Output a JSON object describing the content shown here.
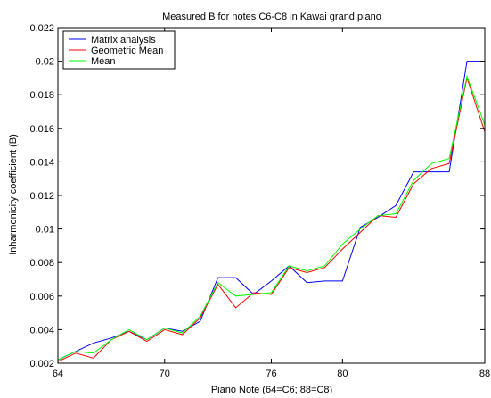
{
  "chart_data": {
    "type": "line",
    "title": "Measured B for notes C6-C8 in Kawai grand piano",
    "xlabel": "Piano Note (64=C6; 88=C8)",
    "ylabel": "Inharmonicity coefficient (B)",
    "xlim": [
      64,
      88
    ],
    "ylim": [
      0.002,
      0.022
    ],
    "x_ticks": [
      {
        "value": 64,
        "label": "64"
      },
      {
        "value": 70,
        "label": "70"
      },
      {
        "value": 76,
        "label": "76"
      },
      {
        "value": 80,
        "label": "80"
      },
      {
        "value": 88,
        "label": "88"
      }
    ],
    "y_ticks": [
      {
        "value": 0.002,
        "label": "0.002"
      },
      {
        "value": 0.004,
        "label": "0.004"
      },
      {
        "value": 0.006,
        "label": "0.006"
      },
      {
        "value": 0.008,
        "label": "0.008"
      },
      {
        "value": 0.01,
        "label": "0.01"
      },
      {
        "value": 0.012,
        "label": "0.012"
      },
      {
        "value": 0.014,
        "label": "0.014"
      },
      {
        "value": 0.016,
        "label": "0.016"
      },
      {
        "value": 0.018,
        "label": "0.018"
      },
      {
        "value": 0.02,
        "label": "0.02"
      },
      {
        "value": 0.022,
        "label": "0.022"
      }
    ],
    "grid": false,
    "legend_position": "top-left",
    "x": [
      64,
      65,
      66,
      67,
      68,
      69,
      70,
      71,
      72,
      73,
      74,
      75,
      76,
      77,
      78,
      79,
      80,
      81,
      82,
      83,
      84,
      85,
      86,
      87,
      88
    ],
    "series": [
      {
        "name": "Matrix analysis",
        "color": "#0000ff",
        "values": [
          0.0022,
          0.0027,
          0.0032,
          0.0035,
          0.0039,
          0.0034,
          0.0041,
          0.0039,
          0.0045,
          0.0071,
          0.0071,
          0.0061,
          0.0069,
          0.0078,
          0.0068,
          0.0069,
          0.0069,
          0.0101,
          0.0107,
          0.0114,
          0.0134,
          0.0134,
          0.0134,
          0.02,
          0.02
        ]
      },
      {
        "name": "Geometric Mean",
        "color": "#ff0000",
        "values": [
          0.0021,
          0.0026,
          0.0023,
          0.0034,
          0.0039,
          0.0033,
          0.004,
          0.0037,
          0.0047,
          0.0067,
          0.0053,
          0.0062,
          0.0061,
          0.0077,
          0.0074,
          0.0077,
          0.0088,
          0.0098,
          0.0108,
          0.0107,
          0.0127,
          0.0136,
          0.0139,
          0.019,
          0.0158
        ]
      },
      {
        "name": "Mean",
        "color": "#00ff00",
        "values": [
          0.0022,
          0.0027,
          0.0026,
          0.0034,
          0.004,
          0.0034,
          0.0041,
          0.0038,
          0.0048,
          0.0068,
          0.006,
          0.0061,
          0.0062,
          0.0078,
          0.0075,
          0.0078,
          0.0091,
          0.01,
          0.0108,
          0.0109,
          0.0129,
          0.0139,
          0.0142,
          0.0191,
          0.0162
        ]
      }
    ]
  }
}
